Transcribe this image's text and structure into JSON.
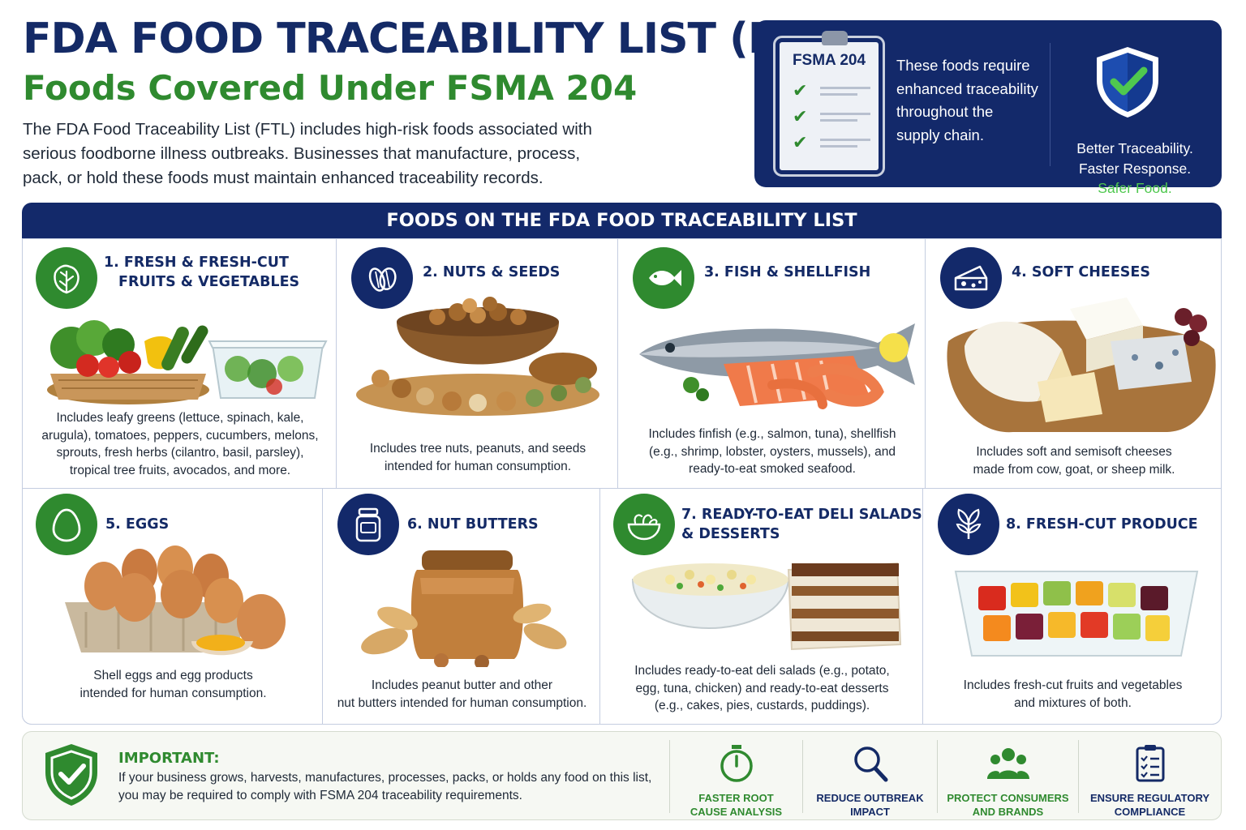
{
  "header": {
    "title": "FDA FOOD TRACEABILITY LIST (FTL)",
    "subtitle": "Foods Covered Under FSMA 204",
    "intro_lines": [
      "The FDA Food Traceability List (FTL) includes high-risk foods associated with",
      "serious foodborne illness outbreaks. Businesses that manufacture, process,",
      "pack, or hold these foods must maintain enhanced traceability records."
    ]
  },
  "hero": {
    "clipboard_title": "FSMA 204",
    "text_lines": [
      "These foods require",
      "enhanced traceability",
      "throughout the",
      "supply chain."
    ],
    "tagline": [
      "Better Traceability.",
      "Faster Response.",
      "Safer Food."
    ]
  },
  "section": {
    "title": "FOODS ON THE FDA FOOD TRACEABILITY LIST",
    "items": [
      {
        "title_lines": [
          "1. FRESH & FRESH-CUT",
          "FRUITS & VEGETABLES"
        ],
        "icon": "leafy-greens-icon",
        "desc_lines": [
          "Includes leafy greens (lettuce, spinach, kale,",
          "arugula), tomatoes, peppers, cucumbers, melons,",
          "sprouts, fresh herbs (cilantro, basil, parsley),",
          "tropical tree fruits, avocados, and more."
        ]
      },
      {
        "title_lines": [
          "2. NUTS & SEEDS"
        ],
        "icon": "nuts-icon",
        "desc_lines": [
          "Includes tree nuts, peanuts, and seeds",
          "intended for human consumption."
        ]
      },
      {
        "title_lines": [
          "3. FISH & SHELLFISH"
        ],
        "icon": "fish-icon",
        "desc_lines": [
          "Includes finfish (e.g., salmon, tuna), shellfish",
          "(e.g., shrimp, lobster, oysters, mussels), and",
          "ready-to-eat smoked seafood."
        ]
      },
      {
        "title_lines": [
          "4. SOFT CHEESES"
        ],
        "icon": "cheese-icon",
        "desc_lines": [
          "Includes soft and semisoft cheeses",
          "made from cow, goat, or sheep milk."
        ]
      },
      {
        "title_lines": [
          "5. EGGS"
        ],
        "icon": "egg-icon",
        "desc_lines": [
          "Shell eggs and egg products",
          "intended for human consumption."
        ]
      },
      {
        "title_lines": [
          "6. NUT BUTTERS"
        ],
        "icon": "jar-icon",
        "desc_lines": [
          "Includes peanut butter and other",
          "nut butters intended for human consumption."
        ]
      },
      {
        "title_lines": [
          "7. READY-TO-EAT DELI SALADS",
          "& DESSERTS"
        ],
        "icon": "salad-bowl-icon",
        "desc_lines": [
          "Includes ready-to-eat deli salads (e.g., potato,",
          "egg, tuna, chicken) and ready-to-eat desserts",
          "(e.g., cakes, pies, custards, puddings)."
        ]
      },
      {
        "title_lines": [
          "8. FRESH-CUT PRODUCE"
        ],
        "icon": "plant-icon",
        "desc_lines": [
          "Includes fresh-cut fruits and vegetables",
          "and mixtures of both."
        ]
      }
    ]
  },
  "important": {
    "title": "IMPORTANT:",
    "text_lines": [
      "If your business grows, harvests, manufactures, processes, packs, or holds any food on this list,",
      "you may be required to comply with FSMA 204 traceability requirements."
    ],
    "benefits": [
      {
        "lines": [
          "FASTER ROOT",
          "CAUSE ANALYSIS"
        ],
        "icon": "stopwatch-icon",
        "color": "#2f8a2f"
      },
      {
        "lines": [
          "REDUCE OUTBREAK",
          "IMPACT"
        ],
        "icon": "magnifier-icon",
        "color": "#142a66"
      },
      {
        "lines": [
          "PROTECT CONSUMERS",
          "AND BRANDS"
        ],
        "icon": "people-icon",
        "color": "#2f8a2f"
      },
      {
        "lines": [
          "ENSURE REGULATORY",
          "COMPLIANCE"
        ],
        "icon": "clipboard-icon",
        "color": "#142a66"
      }
    ]
  },
  "colors": {
    "navy": "#13296a",
    "green": "#2f8a2f",
    "bright_green": "#4fc84f"
  }
}
